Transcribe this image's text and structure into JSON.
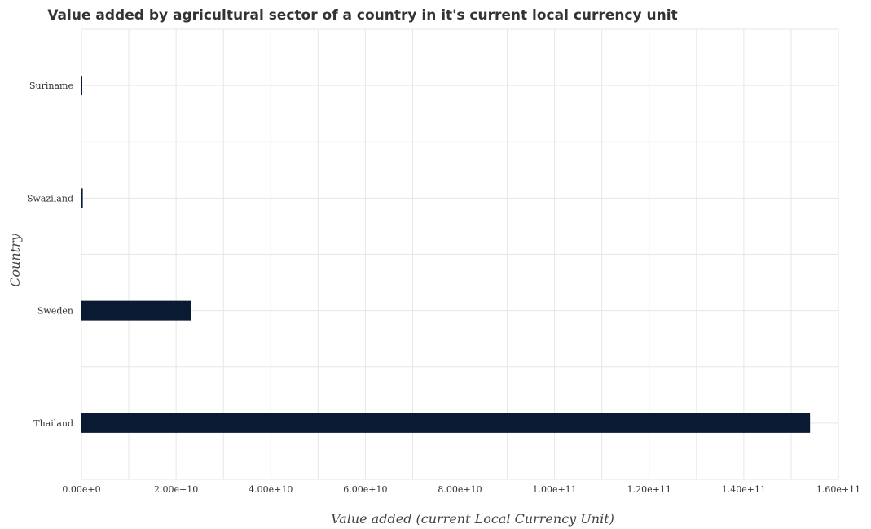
{
  "chart_data": {
    "type": "bar",
    "orientation": "horizontal",
    "title": "Value added by agricultural sector of a country in it's current local currency unit",
    "xlabel": "Value added (current Local Currency Unit)",
    "ylabel": "Country",
    "categories": [
      "Suriname",
      "Swaziland",
      "Sweden",
      "Thailand"
    ],
    "values": [
      150000000,
      280000000,
      23100000000,
      154000000000
    ],
    "xlim": [
      0,
      160000000000
    ],
    "x_ticks": [
      0,
      20000000000,
      40000000000,
      60000000000,
      80000000000,
      100000000000,
      120000000000,
      140000000000,
      160000000000
    ],
    "x_tick_labels": [
      "0.00e+0",
      "2.00e+10",
      "4.00e+10",
      "6.00e+10",
      "8.00e+10",
      "1.00e+11",
      "1.20e+11",
      "1.40e+11",
      "1.60e+11"
    ],
    "grid": true,
    "bar_color": "#0b1a33"
  }
}
